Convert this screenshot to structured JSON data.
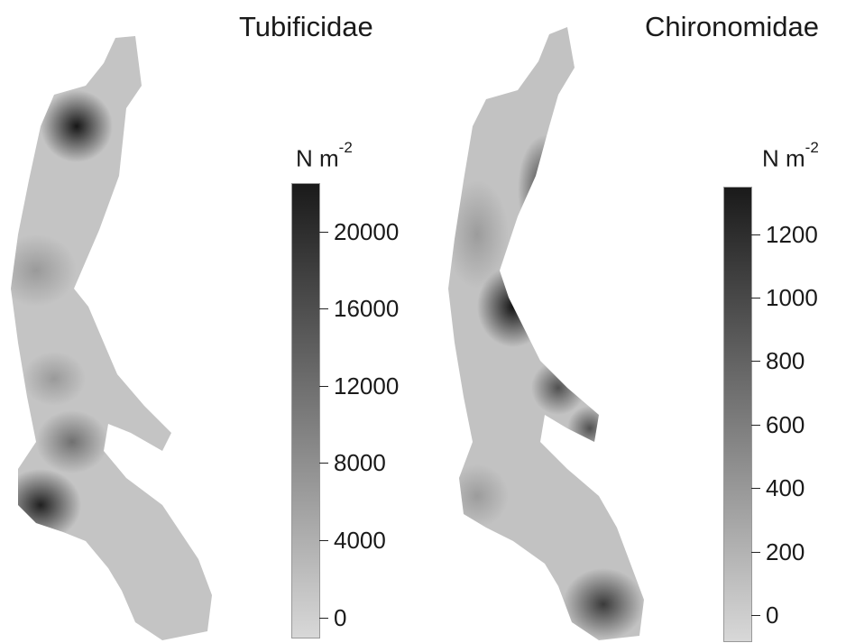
{
  "maps": [
    {
      "title": "Tubificidae",
      "unit_prefix": "N m",
      "unit_exponent": "-2",
      "colorbar": {
        "ticks": [
          "0",
          "4000",
          "8000",
          "12000",
          "16000",
          "20000"
        ],
        "range": [
          -1000,
          22500
        ],
        "color_low": "#d8d8d8",
        "color_high": "#1a1a1a"
      }
    },
    {
      "title": "Chironomidae",
      "unit_prefix": "N m",
      "unit_exponent": "-2",
      "colorbar": {
        "ticks": [
          "0",
          "200",
          "400",
          "600",
          "800",
          "1000",
          "1200"
        ],
        "range": [
          -80,
          1350
        ],
        "color_low": "#d8d8d8",
        "color_high": "#1a1a1a"
      }
    }
  ]
}
